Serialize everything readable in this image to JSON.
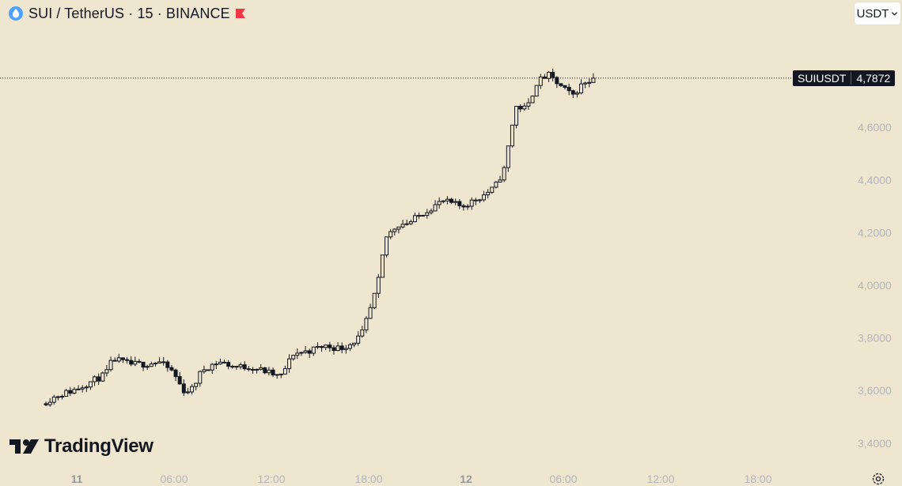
{
  "header": {
    "title": "SUI / TetherUS · 15 · BINANCE"
  },
  "currency": {
    "label": "USDT"
  },
  "price_tag": {
    "symbol": "SUIUSDT",
    "value": "4,7872"
  },
  "branding": {
    "name": "TradingView"
  },
  "icons": {
    "symbol": "sui-logo-icon",
    "flag": "flag-icon",
    "currency_chevron": "chevron-down-icon",
    "settings": "gear-icon",
    "logo": "tradingview-logo-icon"
  },
  "colors": {
    "background": "#efe6cf",
    "candle": "#131722",
    "flag": "#f23645",
    "axis_text": "#b2b5be"
  },
  "chart_data": {
    "type": "candlestick",
    "y_axis": {
      "ticks": [
        3.4,
        3.6,
        3.8,
        4.0,
        4.2,
        4.4,
        4.6
      ],
      "tick_labels": [
        "3,4000",
        "3,6000",
        "3,8000",
        "4,0000",
        "4,2000",
        "4,4000",
        "4,6000"
      ],
      "range": [
        3.4,
        4.9
      ]
    },
    "x_axis": {
      "labels": [
        {
          "text": "11",
          "bold": true,
          "hours": 0
        },
        {
          "text": "06:00",
          "bold": false,
          "hours": 6
        },
        {
          "text": "12:00",
          "bold": false,
          "hours": 12
        },
        {
          "text": "18:00",
          "bold": false,
          "hours": 18
        },
        {
          "text": "12",
          "bold": true,
          "hours": 24
        },
        {
          "text": "06:00",
          "bold": false,
          "hours": 30
        },
        {
          "text": "12:00",
          "bold": false,
          "hours": 36
        },
        {
          "text": "18:00",
          "bold": false,
          "hours": 42
        }
      ],
      "range_hours": [
        0,
        48
      ]
    },
    "last_price": 4.7872,
    "close_path": [
      [
        -1.9,
        3.55
      ],
      [
        -1.0,
        3.58
      ],
      [
        0.0,
        3.6
      ],
      [
        1.0,
        3.63
      ],
      [
        2.0,
        3.66
      ],
      [
        2.5,
        3.72
      ],
      [
        3.5,
        3.7
      ],
      [
        4.5,
        3.7
      ],
      [
        5.3,
        3.71
      ],
      [
        6.2,
        3.67
      ],
      [
        6.8,
        3.6
      ],
      [
        7.3,
        3.6
      ],
      [
        8.0,
        3.68
      ],
      [
        9.0,
        3.71
      ],
      [
        10.0,
        3.69
      ],
      [
        11.0,
        3.69
      ],
      [
        12.0,
        3.67
      ],
      [
        12.8,
        3.65
      ],
      [
        13.6,
        3.74
      ],
      [
        14.5,
        3.75
      ],
      [
        15.5,
        3.77
      ],
      [
        16.5,
        3.76
      ],
      [
        17.2,
        3.78
      ],
      [
        17.8,
        3.81
      ],
      [
        18.3,
        3.9
      ],
      [
        18.8,
        4.0
      ],
      [
        19.3,
        4.18
      ],
      [
        20.0,
        4.23
      ],
      [
        20.8,
        4.24
      ],
      [
        21.7,
        4.28
      ],
      [
        22.8,
        4.32
      ],
      [
        24.0,
        4.3
      ],
      [
        25.0,
        4.33
      ],
      [
        26.0,
        4.37
      ],
      [
        26.6,
        4.44
      ],
      [
        27.3,
        4.68
      ],
      [
        28.0,
        4.67
      ],
      [
        28.6,
        4.77
      ],
      [
        29.3,
        4.8
      ],
      [
        30.0,
        4.76
      ],
      [
        30.8,
        4.72
      ],
      [
        31.5,
        4.77
      ],
      [
        32.0,
        4.78
      ]
    ]
  }
}
